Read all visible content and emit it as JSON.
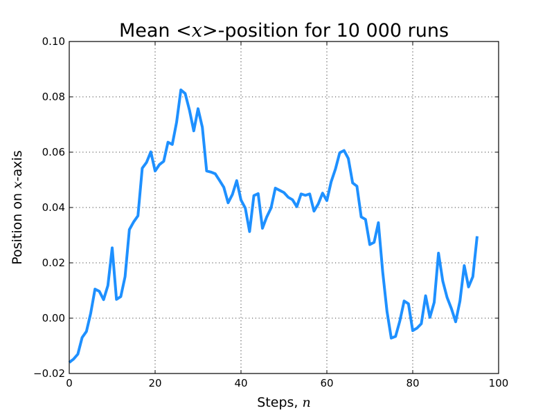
{
  "chart_data": {
    "type": "line",
    "title": {
      "prefix": "Mean ",
      "math": "<x>",
      "suffix": "-position for 10 000 runs"
    },
    "xlabel": {
      "prefix": "Steps, ",
      "math": "n",
      "suffix": ""
    },
    "ylabel": {
      "prefix": "Position on ",
      "math": "x",
      "suffix": "-axis"
    },
    "xlim": [
      0,
      100
    ],
    "ylim": [
      -0.02,
      0.1
    ],
    "xticks": [
      0,
      20,
      40,
      60,
      80,
      100
    ],
    "xtick_labels": [
      "0",
      "20",
      "40",
      "60",
      "80",
      "100"
    ],
    "yticks": [
      -0.02,
      0.0,
      0.02,
      0.04,
      0.06,
      0.08,
      0.1
    ],
    "ytick_labels": [
      "−0.02",
      "0.00",
      "0.02",
      "0.04",
      "0.06",
      "0.08",
      "0.10"
    ],
    "grid": true,
    "series": [
      {
        "color": "#1e90ff",
        "x": [
          0,
          1,
          2,
          3,
          4,
          5,
          6,
          7,
          8,
          9,
          10,
          11,
          12,
          13,
          14,
          15,
          16,
          17,
          18,
          19,
          20,
          21,
          22,
          23,
          24,
          25,
          26,
          27,
          28,
          29,
          30,
          31,
          32,
          33,
          34,
          35,
          36,
          37,
          38,
          39,
          40,
          41,
          42,
          43,
          44,
          45,
          46,
          47,
          48,
          49,
          50,
          51,
          52,
          53,
          54,
          55,
          56,
          57,
          58,
          59,
          60,
          61,
          62,
          63,
          64,
          65,
          66,
          67,
          68,
          69,
          70,
          71,
          72,
          73,
          74,
          75,
          76,
          77,
          78,
          79,
          80,
          81,
          82,
          83,
          84,
          85,
          86,
          87,
          88,
          89,
          90,
          91,
          92,
          93,
          94,
          95
        ],
        "y": [
          -0.016,
          -0.0148,
          -0.013,
          -0.007,
          -0.0048,
          0.0018,
          0.0105,
          0.0097,
          0.0067,
          0.0118,
          0.0254,
          0.0068,
          0.0078,
          0.015,
          0.032,
          0.0348,
          0.037,
          0.0542,
          0.0563,
          0.0601,
          0.0532,
          0.0555,
          0.0567,
          0.0636,
          0.0628,
          0.0708,
          0.0825,
          0.0812,
          0.0752,
          0.0677,
          0.0757,
          0.069,
          0.0532,
          0.0528,
          0.0522,
          0.0498,
          0.0473,
          0.0417,
          0.0447,
          0.0497,
          0.0427,
          0.0398,
          0.0313,
          0.0443,
          0.045,
          0.0325,
          0.0366,
          0.0398,
          0.047,
          0.0462,
          0.0454,
          0.0437,
          0.0428,
          0.0403,
          0.0449,
          0.0444,
          0.0449,
          0.0387,
          0.0413,
          0.0452,
          0.0425,
          0.0493,
          0.0539,
          0.0598,
          0.0606,
          0.0577,
          0.0489,
          0.0477,
          0.0366,
          0.0357,
          0.0266,
          0.0274,
          0.0345,
          0.0168,
          0.0025,
          -0.0072,
          -0.0066,
          -0.001,
          0.0062,
          0.0052,
          -0.0045,
          -0.0036,
          -0.002,
          0.0081,
          0.0003,
          0.0057,
          0.0235,
          0.0134,
          0.0075,
          0.0035,
          -0.0013,
          0.0062,
          0.019,
          0.0113,
          0.015,
          0.0296
        ]
      }
    ]
  }
}
